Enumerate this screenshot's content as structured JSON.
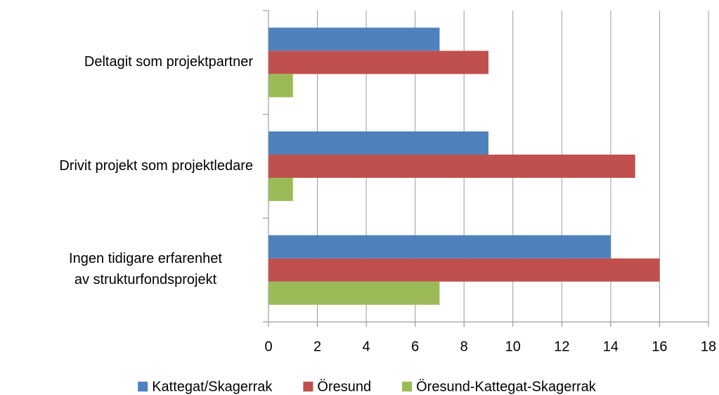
{
  "chart_data": {
    "type": "bar",
    "orientation": "horizontal",
    "categories": [
      "Deltagit som projektpartner",
      "Drivit projekt som projektledare",
      "Ingen tidigare erfarenhet av strukturfondsprojekt"
    ],
    "series": [
      {
        "name": "Kattegat/Skagerrak",
        "color": "#4f81bd",
        "values": [
          7,
          9,
          14
        ]
      },
      {
        "name": "Öresund",
        "color": "#c0504d",
        "values": [
          9,
          15,
          16
        ]
      },
      {
        "name": "Öresund-Kattegat-Skagerrak",
        "color": "#9bbb59",
        "values": [
          1,
          1,
          7
        ]
      }
    ],
    "xlim": [
      0,
      18
    ],
    "xticks": [
      0,
      2,
      4,
      6,
      8,
      10,
      12,
      14,
      16,
      18
    ],
    "grid": true,
    "legend": "bottom"
  }
}
